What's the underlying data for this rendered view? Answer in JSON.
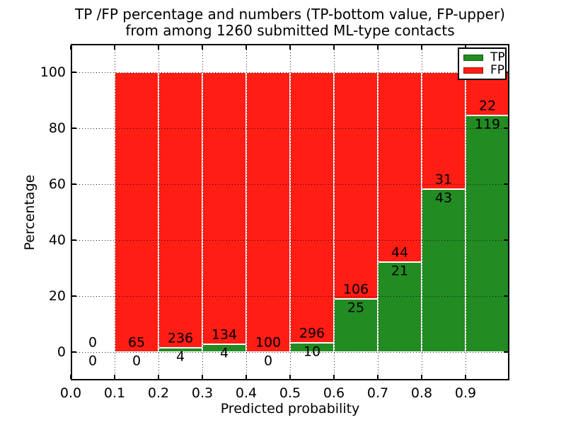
{
  "chart_data": {
    "type": "bar",
    "stacked": true,
    "title_lines": [
      "TP /FP percentage and numbers (TP-bottom value, FP-upper)",
      "from among 1260 submitted ML-type contacts"
    ],
    "total_submitted": 1260,
    "xlabel": "Predicted probability",
    "ylabel": "Percentage",
    "xlim": [
      0.0,
      1.0
    ],
    "ylim": [
      -10,
      110
    ],
    "xtick_values": [
      0.0,
      0.1,
      0.2,
      0.3,
      0.4,
      0.5,
      0.6,
      0.7,
      0.8,
      0.9
    ],
    "xtick_labels": [
      "0.0",
      "0.1",
      "0.2",
      "0.3",
      "0.4",
      "0.5",
      "0.6",
      "0.7",
      "0.8",
      "0.9"
    ],
    "ytick_values": [
      0,
      20,
      40,
      60,
      80,
      100
    ],
    "ytick_labels": [
      "0",
      "20",
      "40",
      "60",
      "80",
      "100"
    ],
    "grid": {
      "style": "dotted",
      "color": "#000000",
      "drawn_over_bars": true
    },
    "colors": {
      "tp": "#228b22",
      "fp": "#ff1d14",
      "bar_edge": "#ffffff",
      "text": "#000000",
      "background": "#ffffff"
    },
    "legend": {
      "position": "upper-right",
      "entries": [
        {
          "label": "TP",
          "color": "#228b22",
          "edge": "#0f5c0f"
        },
        {
          "label": "FP",
          "color": "#ff1d14",
          "edge": "#a31208"
        }
      ]
    },
    "bins": [
      {
        "x0": 0.0,
        "x1": 0.1,
        "tp": 0,
        "fp": 0,
        "tp_pct": 0,
        "fp_pct": 0
      },
      {
        "x0": 0.1,
        "x1": 0.2,
        "tp": 0,
        "fp": 65,
        "tp_pct": 0,
        "fp_pct": 100
      },
      {
        "x0": 0.2,
        "x1": 0.3,
        "tp": 4,
        "fp": 236,
        "tp_pct": 1.67,
        "fp_pct": 98.33
      },
      {
        "x0": 0.3,
        "x1": 0.4,
        "tp": 4,
        "fp": 134,
        "tp_pct": 2.9,
        "fp_pct": 97.1
      },
      {
        "x0": 0.4,
        "x1": 0.5,
        "tp": 0,
        "fp": 100,
        "tp_pct": 0,
        "fp_pct": 100
      },
      {
        "x0": 0.5,
        "x1": 0.6,
        "tp": 10,
        "fp": 296,
        "tp_pct": 3.27,
        "fp_pct": 96.73
      },
      {
        "x0": 0.6,
        "x1": 0.7,
        "tp": 25,
        "fp": 106,
        "tp_pct": 19.08,
        "fp_pct": 80.92
      },
      {
        "x0": 0.7,
        "x1": 0.8,
        "tp": 21,
        "fp": 44,
        "tp_pct": 32.31,
        "fp_pct": 67.69
      },
      {
        "x0": 0.8,
        "x1": 0.9,
        "tp": 43,
        "fp": 31,
        "tp_pct": 58.11,
        "fp_pct": 41.89
      },
      {
        "x0": 0.9,
        "x1": 1.0,
        "tp": 119,
        "fp": 22,
        "tp_pct": 84.4,
        "fp_pct": 15.6
      }
    ]
  }
}
